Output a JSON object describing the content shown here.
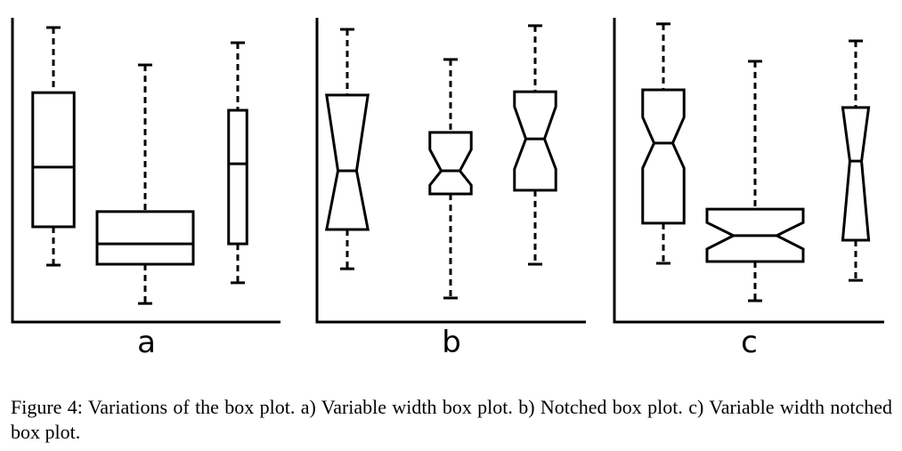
{
  "chart_data": [
    {
      "type": "boxplot",
      "xlabel": "a",
      "ylim": [
        0,
        100
      ],
      "boxes": [
        {
          "min": 18.7,
          "q1": 31.3,
          "median": 50.9,
          "q3": 75.4,
          "max": 96.8,
          "width": 0.43
        },
        {
          "min": 6.1,
          "q1": 19.0,
          "median": 25.7,
          "q3": 36.3,
          "max": 84.5,
          "width": 1
        },
        {
          "min": 12.9,
          "q1": 25.7,
          "median": 52.0,
          "q3": 69.6,
          "max": 91.8,
          "width": 0.19
        }
      ]
    },
    {
      "type": "boxplot",
      "xlabel": "b",
      "ylim": [
        0,
        100
      ],
      "boxes": [
        {
          "min": 17.5,
          "q1": 30.4,
          "median": 49.7,
          "q3": 74.6,
          "max": 96.2,
          "width": 0.43,
          "notch": [
            25,
            75
          ]
        },
        {
          "min": 7.9,
          "q1": 42.1,
          "median": 49.7,
          "q3": 62.3,
          "max": 86.3,
          "width": 0.43,
          "notch": [
            45.0,
            56.7
          ]
        },
        {
          "min": 19.0,
          "q1": 43.3,
          "median": 60.2,
          "q3": 75.7,
          "max": 97.4,
          "width": 0.43,
          "notch": [
            50.3,
            70.8
          ]
        }
      ]
    },
    {
      "type": "boxplot",
      "xlabel": "c",
      "ylim": [
        0,
        100
      ],
      "boxes": [
        {
          "min": 19.3,
          "q1": 32.5,
          "median": 58.8,
          "q3": 76.3,
          "max": 98.0,
          "width": 0.43,
          "notch": [
            50.6,
            67.3
          ]
        },
        {
          "min": 7.0,
          "q1": 19.9,
          "median": 28.4,
          "q3": 37.1,
          "max": 85.7,
          "width": 1,
          "notch": [
            24.0,
            32.7
          ]
        },
        {
          "min": 13.7,
          "q1": 26.9,
          "median": 52.9,
          "q3": 70.5,
          "max": 92.4,
          "width": 0.27,
          "notch": [
            25,
            72
          ]
        }
      ]
    }
  ],
  "caption": "Figure 4: Variations of the box plot. a) Variable width box plot. b) Notched box plot. c) Variable width notched box plot."
}
